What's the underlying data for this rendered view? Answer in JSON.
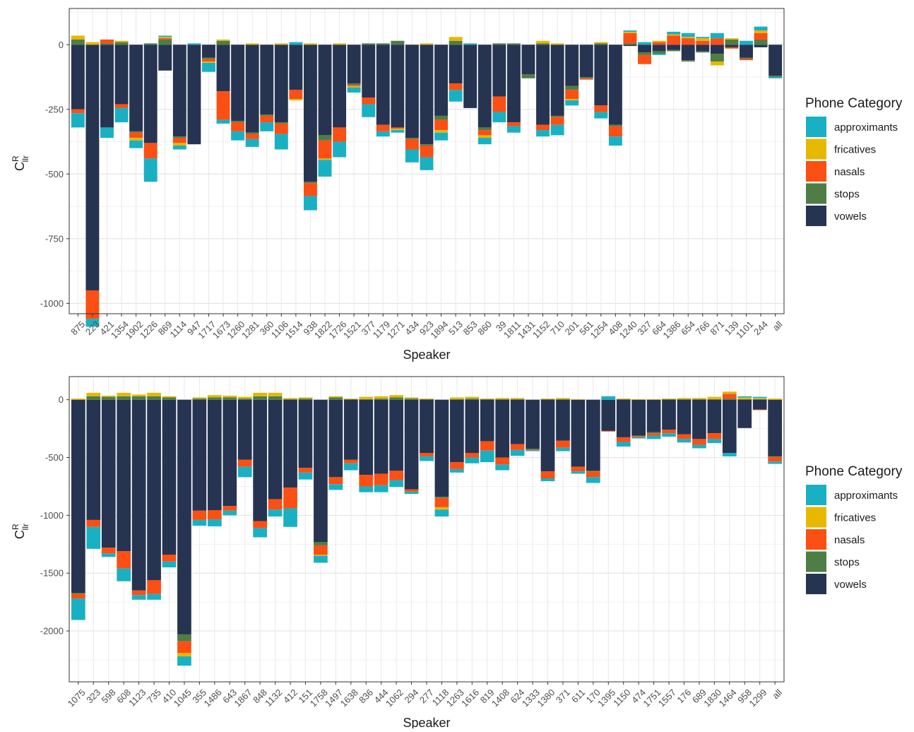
{
  "legend": {
    "title": "Phone Category",
    "entries": [
      {
        "name": "approximants",
        "color": "#1AB0C4"
      },
      {
        "name": "fricatives",
        "color": "#E6B800"
      },
      {
        "name": "nasals",
        "color": "#FB4F14"
      },
      {
        "name": "stops",
        "color": "#4E7D45"
      },
      {
        "name": "vowels",
        "color": "#263452"
      }
    ]
  },
  "chart_data": [
    {
      "type": "bar",
      "stacked": true,
      "xlabel": "Speaker",
      "ylabel": "C",
      "ylabel_sup": "R",
      "ylabel_sub": "llr",
      "ylim": [
        -1040,
        140
      ],
      "yticks": [
        0,
        -250,
        -500,
        -750,
        -1000
      ],
      "grid": true,
      "legend_position": "right",
      "categories": [
        "875",
        "223",
        "421",
        "1354",
        "1902",
        "1226",
        "869",
        "1114",
        "947",
        "1717",
        "1673",
        "1260",
        "1281",
        "360",
        "1106",
        "1514",
        "938",
        "1822",
        "1726",
        "1521",
        "377",
        "1179",
        "1271",
        "434",
        "923",
        "1894",
        "513",
        "853",
        "860",
        "39",
        "1811",
        "1431",
        "1152",
        "710",
        "201",
        "561",
        "1254",
        "408",
        "1240",
        "327",
        "664",
        "1386",
        "654",
        "766",
        "871",
        "139",
        "1101",
        "244",
        "all"
      ],
      "series": [
        {
          "name": "vowels",
          "values": [
            -250,
            -950,
            -320,
            -230,
            -335,
            -380,
            -100,
            -355,
            -385,
            -50,
            -180,
            -295,
            -340,
            -270,
            -300,
            -175,
            -530,
            -350,
            -320,
            -150,
            -205,
            -310,
            -320,
            -360,
            -385,
            -275,
            -150,
            -245,
            -320,
            -200,
            -300,
            -115,
            -310,
            -275,
            -160,
            -125,
            -235,
            -310,
            -5,
            -30,
            -25,
            -20,
            -60,
            -25,
            -35,
            -10,
            -50,
            -10,
            -120
          ]
        },
        {
          "name": "stops",
          "values": [
            20,
            0,
            5,
            10,
            -5,
            5,
            20,
            -5,
            0,
            -5,
            15,
            -5,
            -5,
            -5,
            -5,
            0,
            -5,
            -20,
            0,
            -5,
            5,
            5,
            15,
            -5,
            -5,
            -15,
            15,
            0,
            -10,
            5,
            5,
            -15,
            5,
            -5,
            -15,
            -5,
            5,
            -5,
            5,
            -10,
            -10,
            -5,
            -5,
            -5,
            -30,
            20,
            -5,
            20,
            -5
          ]
        },
        {
          "name": "nasals",
          "values": [
            -15,
            -110,
            15,
            -15,
            -20,
            -60,
            5,
            -20,
            0,
            -10,
            -110,
            -35,
            -20,
            -25,
            -40,
            -35,
            -50,
            -70,
            -55,
            -5,
            -25,
            -25,
            -5,
            -40,
            -45,
            -40,
            -25,
            0,
            -20,
            -60,
            -15,
            0,
            -20,
            -30,
            -35,
            -5,
            -25,
            -40,
            40,
            -35,
            10,
            35,
            25,
            15,
            25,
            -5,
            -5,
            25,
            0
          ]
        },
        {
          "name": "fricatives",
          "values": [
            15,
            10,
            0,
            5,
            -10,
            0,
            5,
            -10,
            0,
            -5,
            5,
            0,
            5,
            0,
            5,
            -5,
            5,
            -5,
            5,
            -5,
            0,
            0,
            -5,
            0,
            5,
            -10,
            15,
            0,
            -10,
            0,
            0,
            0,
            10,
            5,
            -5,
            0,
            5,
            0,
            5,
            0,
            5,
            5,
            5,
            10,
            -15,
            5,
            0,
            10,
            0
          ]
        },
        {
          "name": "approximants",
          "values": [
            -55,
            -30,
            -40,
            -55,
            -30,
            -90,
            5,
            -15,
            5,
            -35,
            -15,
            -35,
            -30,
            -35,
            -60,
            10,
            -55,
            -65,
            -60,
            -20,
            -50,
            -20,
            -10,
            -50,
            -50,
            -30,
            -45,
            5,
            -25,
            -40,
            -25,
            0,
            -25,
            -40,
            -20,
            0,
            -25,
            -35,
            5,
            10,
            -5,
            10,
            15,
            5,
            20,
            0,
            15,
            15,
            -5
          ]
        }
      ]
    },
    {
      "type": "bar",
      "stacked": true,
      "xlabel": "Speaker",
      "ylabel": "C",
      "ylabel_sup": "R",
      "ylabel_sub": "llr",
      "ylim": [
        -2440,
        200
      ],
      "yticks": [
        0,
        -500,
        -1000,
        -1500,
        -2000
      ],
      "grid": true,
      "legend_position": "right",
      "categories": [
        "1075",
        "323",
        "598",
        "608",
        "1123",
        "735",
        "410",
        "1045",
        "355",
        "1486",
        "643",
        "1867",
        "848",
        "1132",
        "412",
        "151",
        "1758",
        "1497",
        "1638",
        "836",
        "444",
        "1062",
        "294",
        "277",
        "1118",
        "1263",
        "1616",
        "819",
        "1408",
        "624",
        "1333",
        "1380",
        "371",
        "611",
        "170",
        "1395",
        "1150",
        "474",
        "1751",
        "1557",
        "176",
        "689",
        "1830",
        "1464",
        "958",
        "1299",
        "all"
      ],
      "series": [
        {
          "name": "vowels",
          "values": [
            -1670,
            -1040,
            -1280,
            -1310,
            -1650,
            -1560,
            -1340,
            -2030,
            -960,
            -955,
            -920,
            -520,
            -1050,
            -860,
            -760,
            -590,
            -1230,
            -670,
            -520,
            -650,
            -640,
            -615,
            -775,
            -460,
            -840,
            -540,
            -460,
            -360,
            -500,
            -385,
            -425,
            -620,
            -355,
            -580,
            -615,
            -270,
            -325,
            -310,
            -280,
            -260,
            -300,
            -340,
            -290,
            -460,
            -245,
            -85,
            -490
          ]
        },
        {
          "name": "stops",
          "values": [
            -10,
            30,
            25,
            30,
            30,
            30,
            20,
            -60,
            10,
            20,
            20,
            10,
            30,
            30,
            5,
            10,
            -30,
            20,
            5,
            5,
            10,
            20,
            10,
            5,
            -10,
            5,
            10,
            5,
            5,
            5,
            -10,
            5,
            5,
            0,
            -5,
            0,
            5,
            -5,
            -10,
            5,
            5,
            5,
            5,
            10,
            5,
            5,
            -5
          ]
        },
        {
          "name": "nasals",
          "values": [
            -40,
            -60,
            -50,
            -150,
            -40,
            -120,
            -60,
            -100,
            -80,
            -80,
            -40,
            -60,
            -60,
            -90,
            -180,
            -40,
            -80,
            -60,
            -30,
            -100,
            -100,
            -80,
            -20,
            -30,
            -80,
            -60,
            -40,
            -80,
            -60,
            -50,
            -5,
            -60,
            -60,
            -40,
            -50,
            -5,
            -40,
            -10,
            -20,
            -30,
            -40,
            -50,
            -50,
            40,
            0,
            -5,
            -40
          ]
        },
        {
          "name": "fricatives",
          "values": [
            10,
            30,
            10,
            30,
            15,
            30,
            10,
            -30,
            10,
            20,
            15,
            15,
            30,
            30,
            10,
            10,
            -10,
            10,
            5,
            20,
            20,
            20,
            10,
            5,
            -20,
            15,
            15,
            5,
            10,
            10,
            0,
            5,
            10,
            5,
            0,
            0,
            5,
            5,
            5,
            5,
            10,
            10,
            20,
            20,
            15,
            10,
            10
          ]
        },
        {
          "name": "approximants",
          "values": [
            -185,
            -190,
            -30,
            -110,
            -40,
            -50,
            -50,
            -80,
            -50,
            -60,
            -40,
            -90,
            -80,
            -60,
            -160,
            -60,
            -60,
            -50,
            -60,
            -50,
            -60,
            -60,
            -20,
            -40,
            -60,
            -30,
            -50,
            -100,
            -50,
            -50,
            -5,
            -25,
            -30,
            -20,
            -50,
            30,
            -40,
            -10,
            -30,
            -30,
            -30,
            -30,
            -35,
            -30,
            10,
            10,
            -20
          ]
        }
      ]
    }
  ]
}
